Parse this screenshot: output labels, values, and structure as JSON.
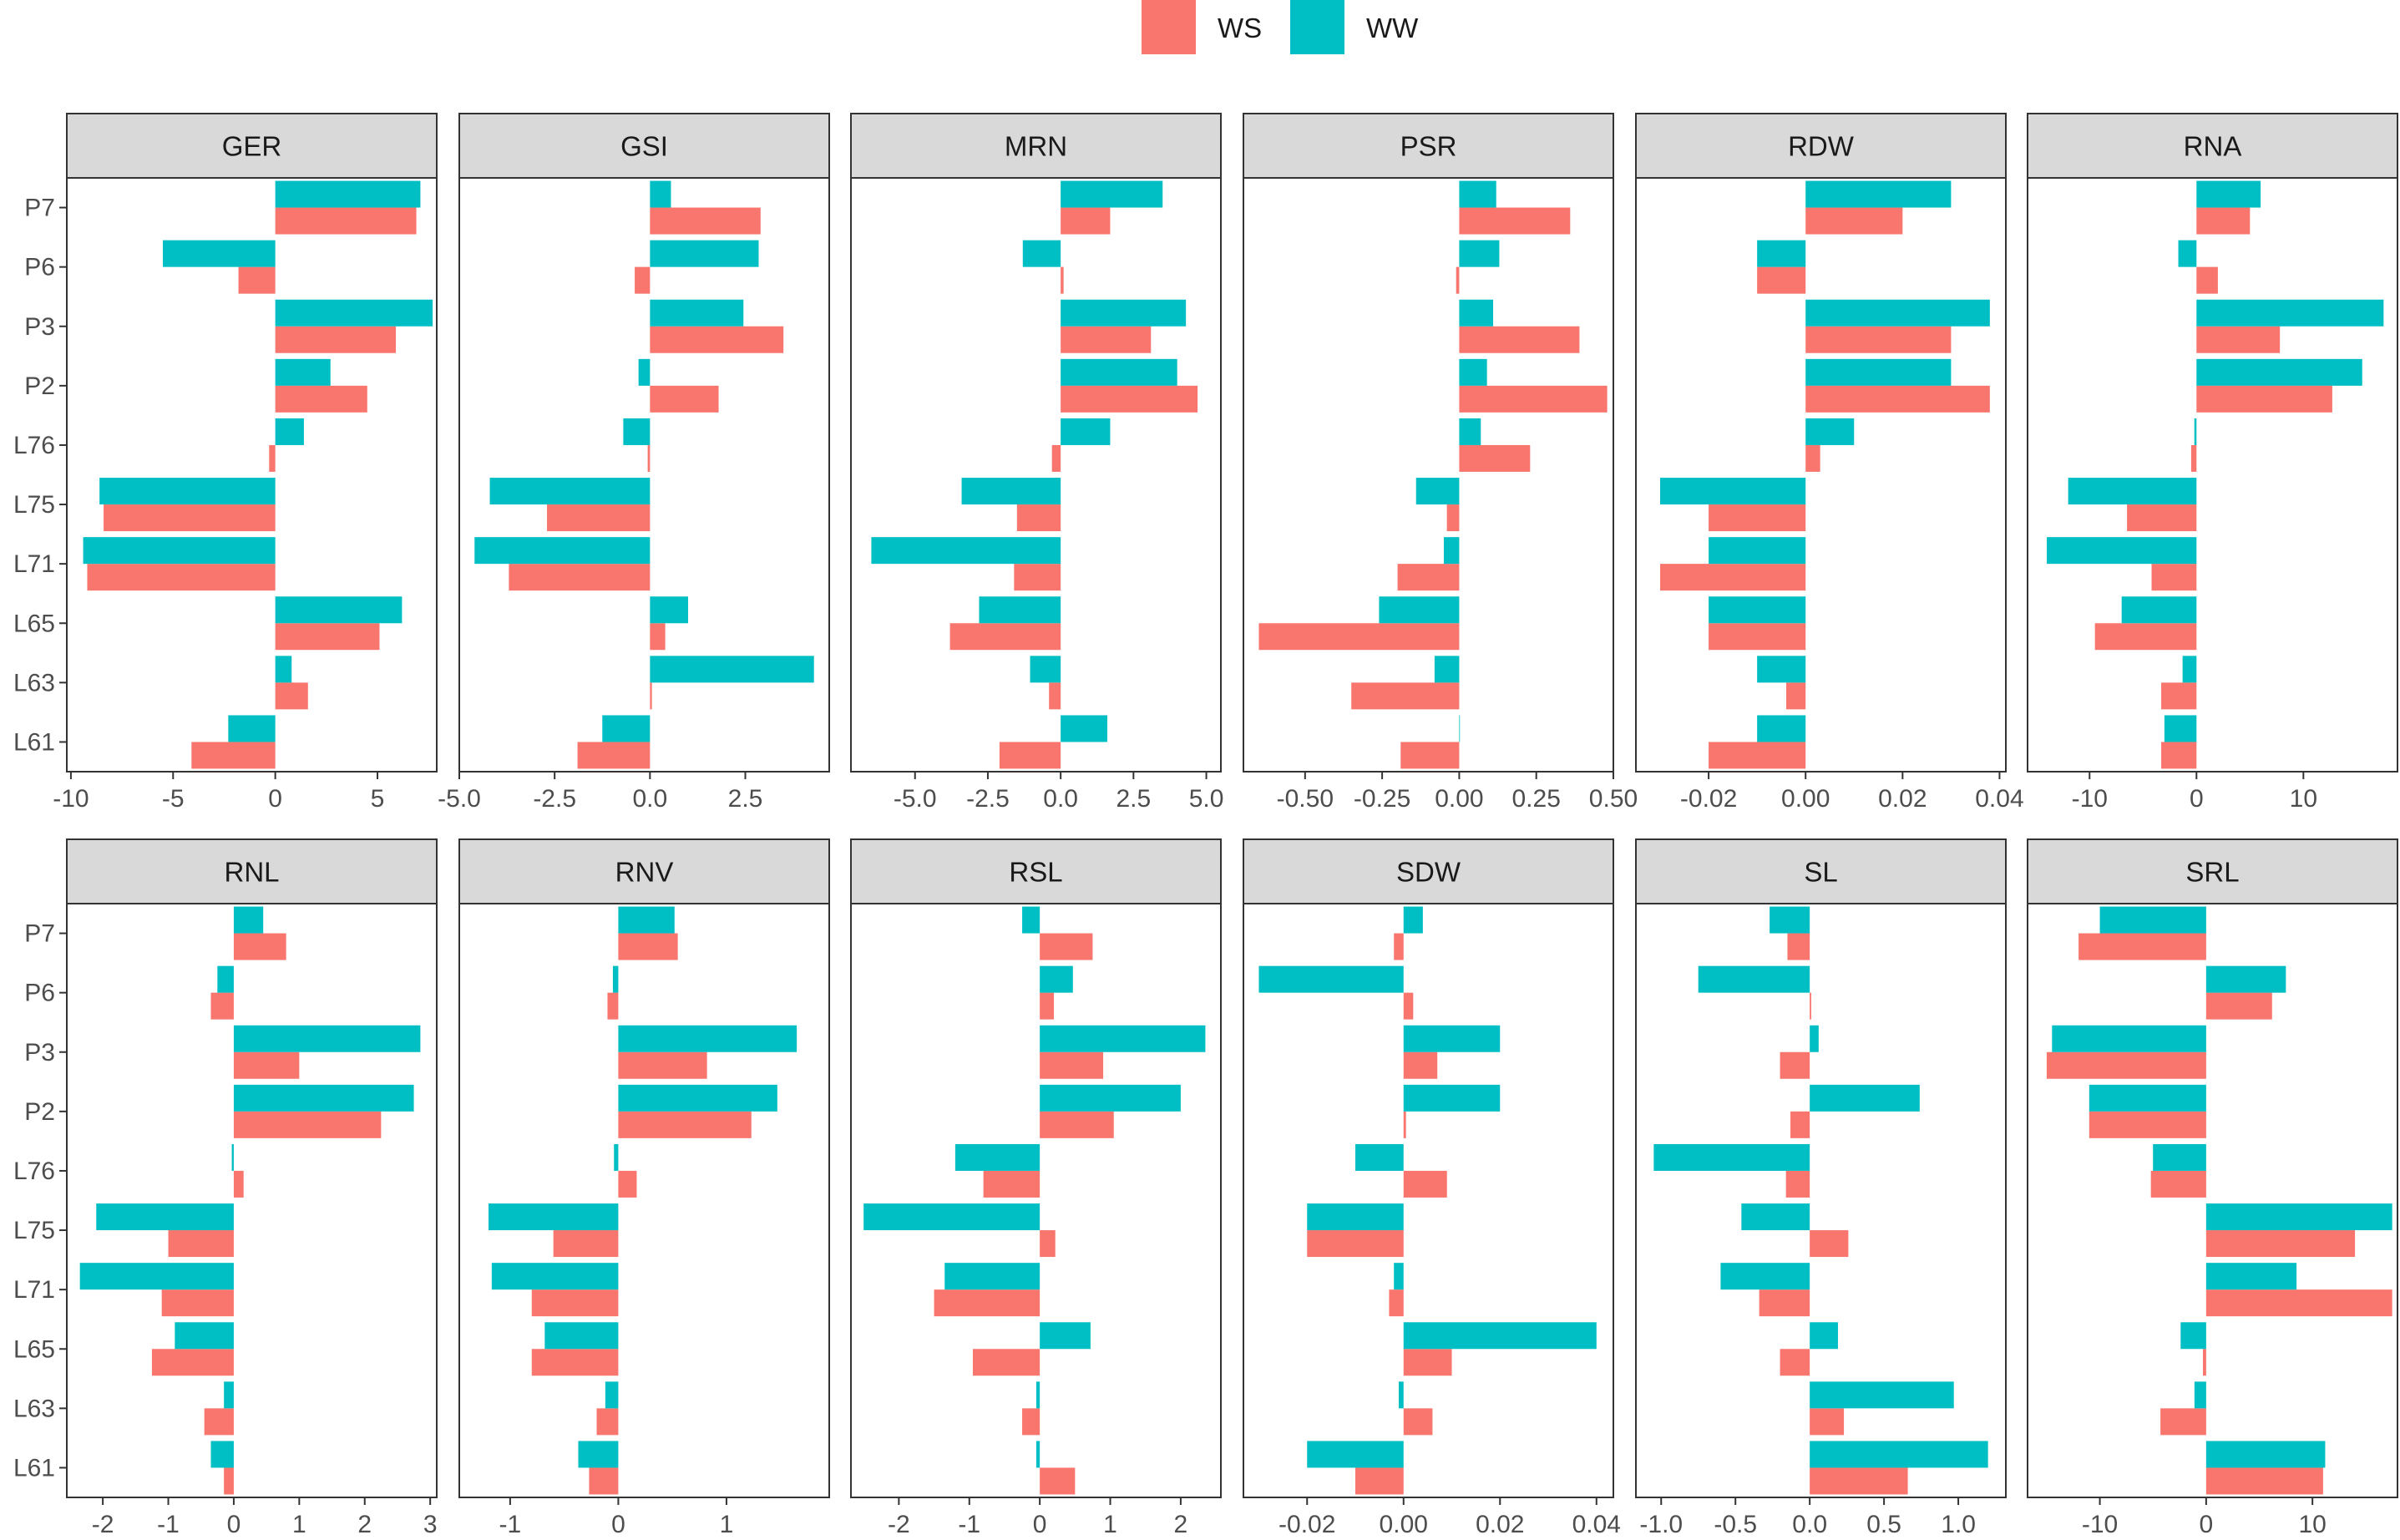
{
  "chart_data": {
    "type": "bar",
    "orientation": "horizontal",
    "categories": [
      "P7",
      "P6",
      "P3",
      "P2",
      "L76",
      "L75",
      "L71",
      "L65",
      "L63",
      "L61"
    ],
    "legend": {
      "position": "top-center",
      "items": [
        {
          "name": "WS",
          "color": "#F8766D"
        },
        {
          "name": "WW",
          "color": "#00BFC4"
        }
      ]
    },
    "panels": [
      {
        "title": "GER",
        "xlim": [
          -10.2,
          7.9
        ],
        "xticks": [
          -10,
          -5,
          0,
          5
        ],
        "xtick_labels": [
          "-10",
          "-5",
          "0",
          "5"
        ],
        "series": [
          {
            "name": "WS",
            "values": [
              6.9,
              -1.8,
              5.9,
              4.5,
              -0.3,
              -8.4,
              -9.2,
              5.1,
              1.6,
              -4.1
            ]
          },
          {
            "name": "WW",
            "values": [
              7.1,
              -5.5,
              7.7,
              2.7,
              1.4,
              -8.6,
              -9.4,
              6.2,
              0.8,
              -2.3
            ]
          }
        ]
      },
      {
        "title": "GSI",
        "xlim": [
          -5.0,
          4.7
        ],
        "xticks": [
          -5,
          -2.5,
          0,
          2.5
        ],
        "xtick_labels": [
          "-5.0",
          "-2.5",
          "0.0",
          "2.5"
        ],
        "series": [
          {
            "name": "WS",
            "values": [
              2.9,
              -0.4,
              3.5,
              1.8,
              -0.06,
              -2.7,
              -3.7,
              0.4,
              0.05,
              -1.9
            ]
          },
          {
            "name": "WW",
            "values": [
              0.55,
              2.85,
              2.45,
              -0.3,
              -0.7,
              -4.2,
              -4.6,
              1.0,
              4.3,
              -1.25
            ]
          }
        ]
      },
      {
        "title": "MRN",
        "xlim": [
          -7.2,
          5.5
        ],
        "xticks": [
          -5,
          -2.5,
          0,
          2.5,
          5
        ],
        "xtick_labels": [
          "-5.0",
          "-2.5",
          "0.0",
          "2.5",
          "5.0"
        ],
        "series": [
          {
            "name": "WS",
            "values": [
              1.7,
              0.1,
              3.1,
              4.7,
              -0.3,
              -1.5,
              -1.6,
              -3.8,
              -0.4,
              -2.1
            ]
          },
          {
            "name": "WW",
            "values": [
              3.5,
              -1.3,
              4.3,
              4.0,
              1.7,
              -3.4,
              -6.5,
              -2.8,
              -1.05,
              1.6
            ]
          }
        ]
      },
      {
        "title": "PSR",
        "xlim": [
          -0.7,
          0.5
        ],
        "xticks": [
          -0.5,
          -0.25,
          0,
          0.25,
          0.5
        ],
        "xtick_labels": [
          "-0.50",
          "-0.25",
          "0.00",
          "0.25",
          "0.50"
        ],
        "series": [
          {
            "name": "WS",
            "values": [
              0.36,
              -0.01,
              0.39,
              0.48,
              0.23,
              -0.04,
              -0.2,
              -0.65,
              -0.35,
              -0.19
            ]
          },
          {
            "name": "WW",
            "values": [
              0.12,
              0.13,
              0.11,
              0.09,
              0.07,
              -0.14,
              -0.05,
              -0.26,
              -0.08,
              0.0
            ]
          }
        ]
      },
      {
        "title": "RDW",
        "xlim": [
          -0.035,
          0.0413
        ],
        "xticks": [
          -0.02,
          0,
          0.02,
          0.04
        ],
        "xtick_labels": [
          "-0.02",
          "0.00",
          "0.02",
          "0.04"
        ],
        "series": [
          {
            "name": "WS",
            "values": [
              0.02,
              -0.01,
              0.03,
              0.038,
              0.003,
              -0.02,
              -0.03,
              -0.02,
              -0.004,
              -0.02
            ]
          },
          {
            "name": "WW",
            "values": [
              0.03,
              -0.01,
              0.038,
              0.03,
              0.01,
              -0.03,
              -0.02,
              -0.02,
              -0.01,
              -0.01
            ]
          }
        ]
      },
      {
        "title": "RNA",
        "xlim": [
          -15.8,
          18.8
        ],
        "xticks": [
          -10,
          0,
          10
        ],
        "xtick_labels": [
          "-10",
          "0",
          "10"
        ],
        "series": [
          {
            "name": "WS",
            "values": [
              5.0,
              2.0,
              7.8,
              12.7,
              -0.5,
              -6.5,
              -4.2,
              -9.5,
              -3.3,
              -3.3
            ]
          },
          {
            "name": "WW",
            "values": [
              6.0,
              -1.7,
              17.5,
              15.5,
              -0.2,
              -12.0,
              -14.0,
              -7.0,
              -1.3,
              -3.0
            ]
          }
        ]
      },
      {
        "title": "RNL",
        "xlim": [
          -2.55,
          3.1
        ],
        "xticks": [
          -2,
          -1,
          0,
          1,
          2,
          3
        ],
        "xtick_labels": [
          "-2",
          "-1",
          "0",
          "1",
          "2",
          "3"
        ],
        "series": [
          {
            "name": "WS",
            "values": [
              0.8,
              -0.35,
              1.0,
              2.25,
              0.15,
              -1.0,
              -1.1,
              -1.25,
              -0.45,
              -0.15
            ]
          },
          {
            "name": "WW",
            "values": [
              0.45,
              -0.25,
              2.85,
              2.75,
              -0.03,
              -2.1,
              -2.35,
              -0.9,
              -0.15,
              -0.35
            ]
          }
        ]
      },
      {
        "title": "RNV",
        "xlim": [
          -1.47,
          1.95
        ],
        "xticks": [
          -1,
          0,
          1
        ],
        "xtick_labels": [
          "-1",
          "0",
          "1"
        ],
        "series": [
          {
            "name": "WS",
            "values": [
              0.55,
              -0.1,
              0.82,
              1.23,
              0.17,
              -0.6,
              -0.8,
              -0.8,
              -0.2,
              -0.27
            ]
          },
          {
            "name": "WW",
            "values": [
              0.52,
              -0.05,
              1.65,
              1.47,
              -0.04,
              -1.2,
              -1.17,
              -0.68,
              -0.12,
              -0.37
            ]
          }
        ]
      },
      {
        "title": "RSL",
        "xlim": [
          -2.68,
          2.57
        ],
        "xticks": [
          -2,
          -1,
          0,
          1,
          2
        ],
        "xtick_labels": [
          "-2",
          "-1",
          "0",
          "1",
          "2"
        ],
        "series": [
          {
            "name": "WS",
            "values": [
              0.75,
              0.2,
              0.9,
              1.05,
              -0.8,
              0.22,
              -1.5,
              -0.95,
              -0.25,
              0.5
            ]
          },
          {
            "name": "WW",
            "values": [
              -0.25,
              0.47,
              2.35,
              2.0,
              -1.2,
              -2.5,
              -1.35,
              0.72,
              -0.05,
              -0.05
            ]
          }
        ]
      },
      {
        "title": "SDW",
        "xlim": [
          -0.0332,
          0.0435
        ],
        "xticks": [
          -0.02,
          0,
          0.02,
          0.04
        ],
        "xtick_labels": [
          "-0.02",
          "0.00",
          "0.02",
          "0.04"
        ],
        "series": [
          {
            "name": "WS",
            "values": [
              -0.002,
              0.002,
              0.007,
              0.0005,
              0.009,
              -0.02,
              -0.003,
              0.01,
              0.006,
              -0.01
            ]
          },
          {
            "name": "WW",
            "values": [
              0.004,
              -0.03,
              0.02,
              0.02,
              -0.01,
              -0.02,
              -0.002,
              0.04,
              -0.001,
              -0.02
            ]
          }
        ]
      },
      {
        "title": "SL",
        "xlim": [
          -1.17,
          1.32
        ],
        "xticks": [
          -1,
          -0.5,
          0,
          0.5,
          1
        ],
        "xtick_labels": [
          "-1.0",
          "-0.5",
          "0.0",
          "0.5",
          "1.0"
        ],
        "series": [
          {
            "name": "WS",
            "values": [
              -0.15,
              0.01,
              -0.2,
              -0.13,
              -0.16,
              0.26,
              -0.34,
              -0.2,
              0.23,
              0.66
            ]
          },
          {
            "name": "WW",
            "values": [
              -0.27,
              -0.75,
              0.06,
              0.74,
              -1.05,
              -0.46,
              -0.6,
              0.19,
              0.97,
              1.2
            ]
          }
        ]
      },
      {
        "title": "SRL",
        "xlim": [
          -16.8,
          18.0
        ],
        "xticks": [
          -10,
          0,
          10
        ],
        "xtick_labels": [
          "-10",
          "0",
          "10"
        ],
        "series": [
          {
            "name": "WS",
            "values": [
              -12.0,
              6.2,
              -15.0,
              -11.0,
              -5.2,
              14.0,
              17.5,
              -0.3,
              -4.3,
              11.0
            ]
          },
          {
            "name": "WW",
            "values": [
              -10.0,
              7.5,
              -14.5,
              -11.0,
              -5.0,
              17.5,
              8.5,
              -2.4,
              -1.1,
              11.2
            ]
          }
        ]
      }
    ]
  }
}
